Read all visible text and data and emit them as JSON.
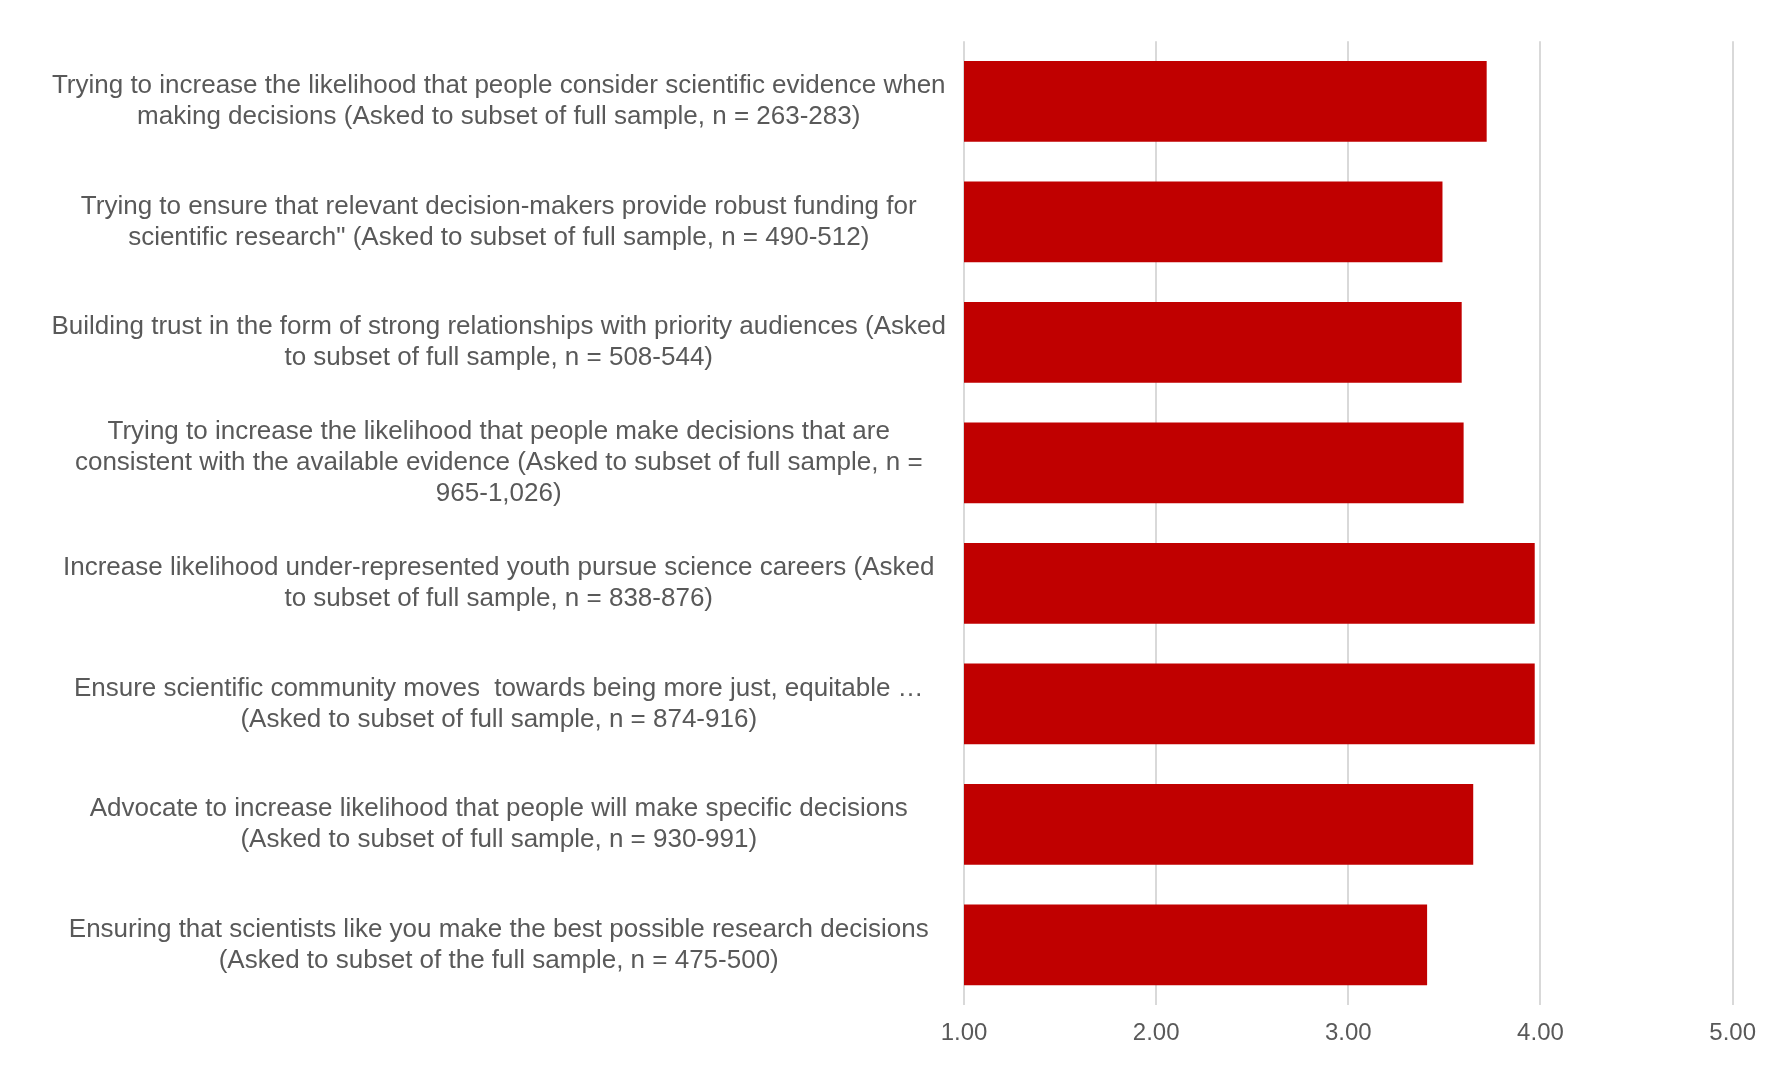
{
  "chart_data": {
    "type": "bar",
    "orientation": "horizontal",
    "categories": [
      "Trying to increase the likelihood that people consider scientific evidence when making decisions (Asked to subset of full sample, n = 263-283)",
      "Trying to ensure that relevant decision-makers provide robust funding for scientific research\" (Asked to subset of full sample, n = 490-512)",
      "Building trust in the form of strong relationships with priority audiences (Asked to subset of full sample, n = 508-544)",
      "Trying to increase the likelihood that people make decisions that are consistent with the available evidence (Asked to subset of full sample, n = 965-1,026)",
      "Increase likelihood under-represented youth pursue science careers (Asked to subset of full sample, n = 838-876)",
      "Ensure scientific community moves  towards being more just, equitable … (Asked to subset of full sample, n = 874-916)",
      "Advocate to increase likelihood that people will make specific decisions (Asked to subset of full sample, n = 930-991)",
      "Ensuring that scientists like you make the best possible research decisions (Asked to subset of the full sample, n = 475-500)"
    ],
    "values": [
      3.72,
      3.49,
      3.59,
      3.6,
      3.97,
      3.97,
      3.65,
      3.41
    ],
    "color": "#c00000",
    "xlim": [
      1,
      5
    ],
    "xticks": [
      {
        "value": 1,
        "label": "1.00"
      },
      {
        "value": 2,
        "label": "2.00"
      },
      {
        "value": 3,
        "label": "3.00"
      },
      {
        "value": 4,
        "label": "4.00"
      },
      {
        "value": 5,
        "label": "5.00"
      }
    ],
    "grid": "x",
    "legend": false
  }
}
